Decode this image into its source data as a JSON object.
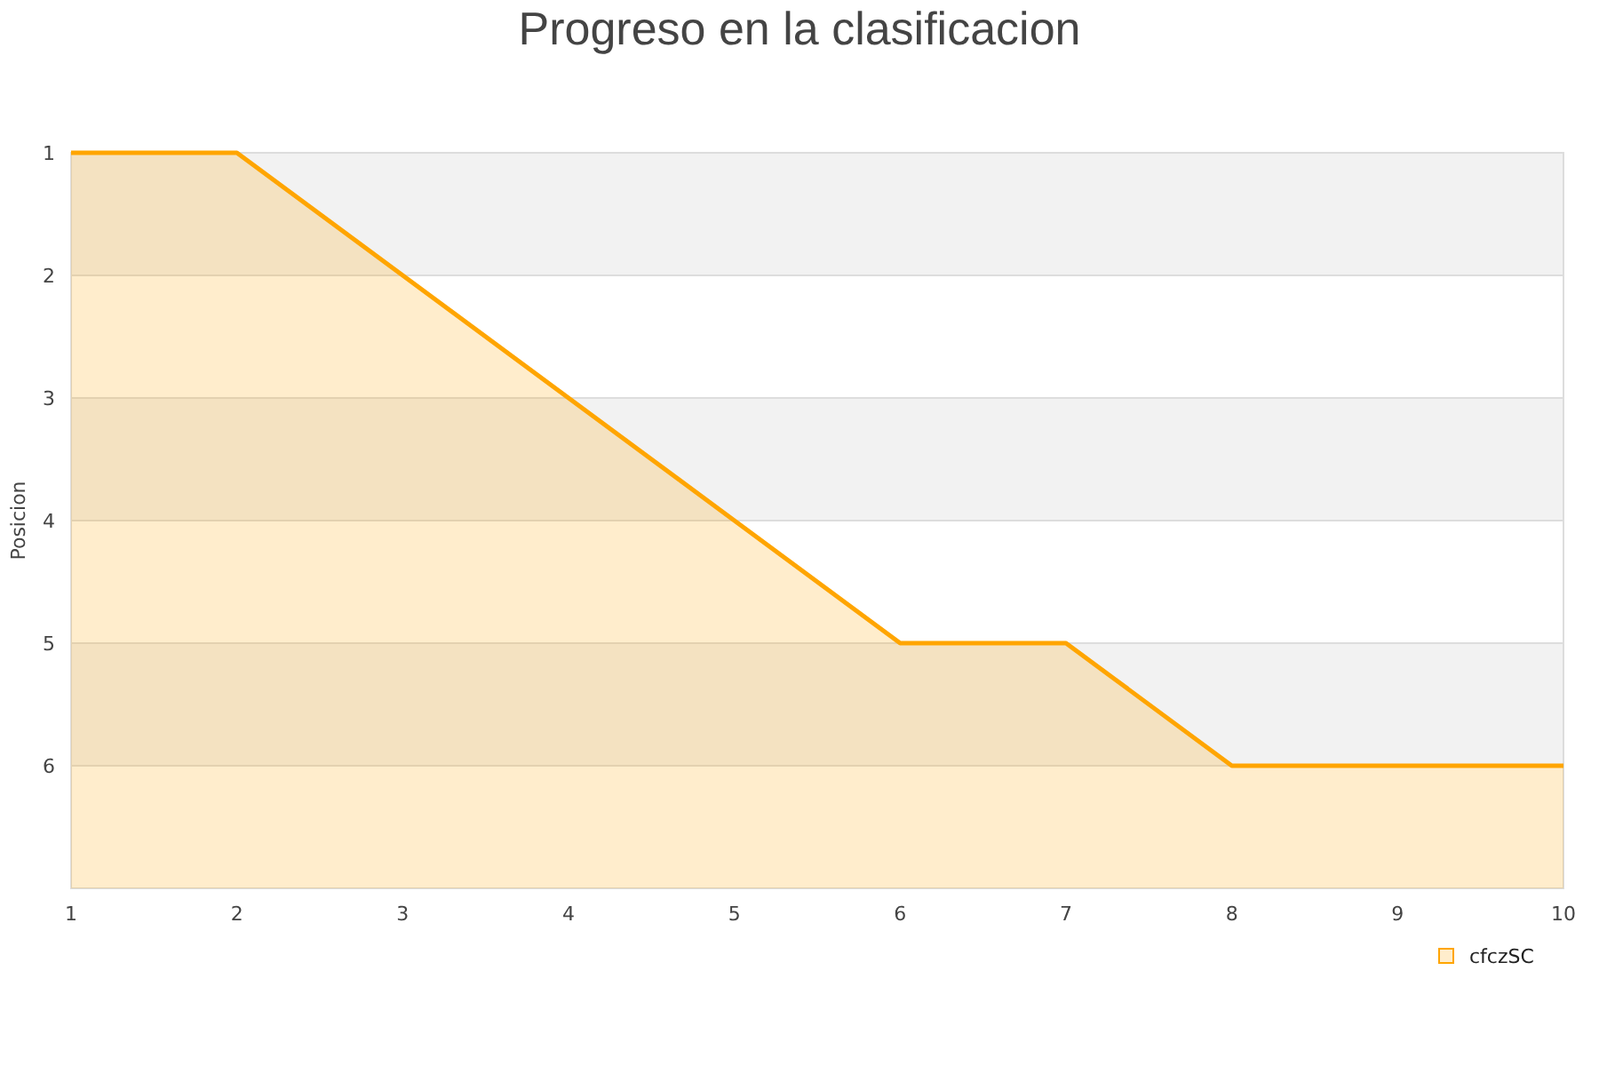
{
  "chart_data": {
    "type": "line",
    "title": "Progreso en la clasificacion",
    "ylabel": "Posicion",
    "x": [
      1,
      2,
      3,
      4,
      5,
      6,
      7,
      8,
      9,
      10
    ],
    "series": [
      {
        "name": "cfczSC",
        "color": "#ffa500",
        "values": [
          1,
          1,
          2,
          3,
          4,
          5,
          5,
          6,
          6,
          6
        ],
        "lower": [
          1,
          1,
          2,
          3,
          4,
          5,
          5,
          6,
          6,
          6
        ],
        "upper": [
          7,
          7,
          7,
          7,
          7,
          7,
          7,
          7,
          7,
          7
        ]
      }
    ],
    "xlim": [
      1,
      10
    ],
    "xticks": [
      1,
      2,
      3,
      4,
      5,
      6,
      7,
      8,
      9,
      10
    ],
    "ylim": [
      7,
      1
    ],
    "yticks": [
      1,
      2,
      3,
      4,
      5,
      6
    ],
    "bands": [
      {
        "axis": "y",
        "from": 1,
        "to": 2,
        "color": "#f2f2f2"
      },
      {
        "axis": "y",
        "from": 3,
        "to": 4,
        "color": "#f2f2f2"
      },
      {
        "axis": "y",
        "from": 5,
        "to": 6,
        "color": "#f2f2f2"
      }
    ],
    "grid": "y",
    "legend": "bottom right"
  }
}
